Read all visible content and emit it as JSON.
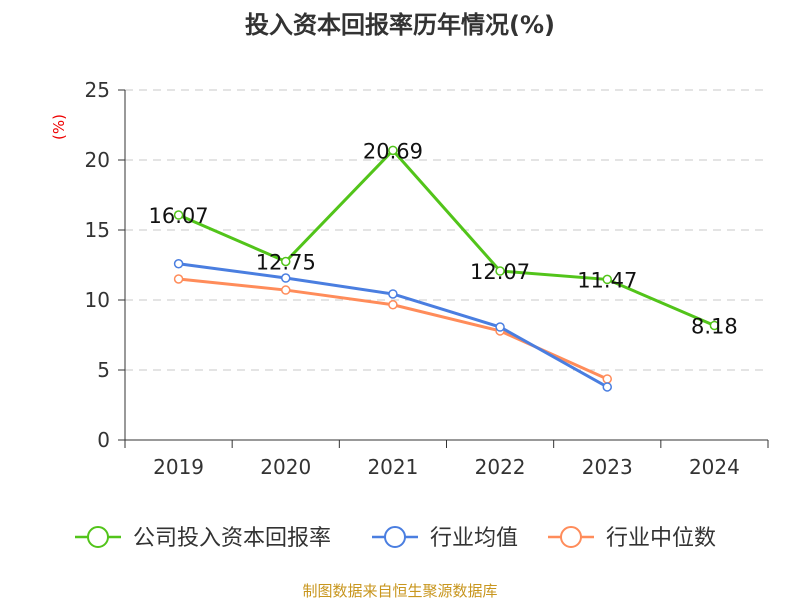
{
  "chart_data": {
    "type": "line",
    "title": "投入资本回报率历年情况(%)",
    "ylabel": "(%)",
    "categories": [
      "2019",
      "2020",
      "2021",
      "2022",
      "2023",
      "2024"
    ],
    "ylim": [
      0,
      25
    ],
    "yticks": [
      0,
      5,
      10,
      15,
      20,
      25
    ],
    "grid": true,
    "legend_position": "bottom",
    "series": [
      {
        "name": "公司投入资本回报率",
        "color": "#52c41a",
        "values": [
          16.07,
          12.75,
          20.69,
          12.07,
          11.47,
          8.18
        ],
        "labels": [
          "16.07",
          "12.75",
          "20.69",
          "12.07",
          "11.47",
          "8.18"
        ]
      },
      {
        "name": "行业均值",
        "color": "#4a7ee0",
        "values": [
          12.59,
          11.57,
          10.43,
          8.07,
          3.79,
          null
        ]
      },
      {
        "name": "行业中位数",
        "color": "#ff8c5a",
        "values": [
          11.5,
          10.71,
          9.66,
          7.79,
          4.36,
          null
        ]
      }
    ],
    "source": "制图数据来自恒生聚源数据库"
  }
}
